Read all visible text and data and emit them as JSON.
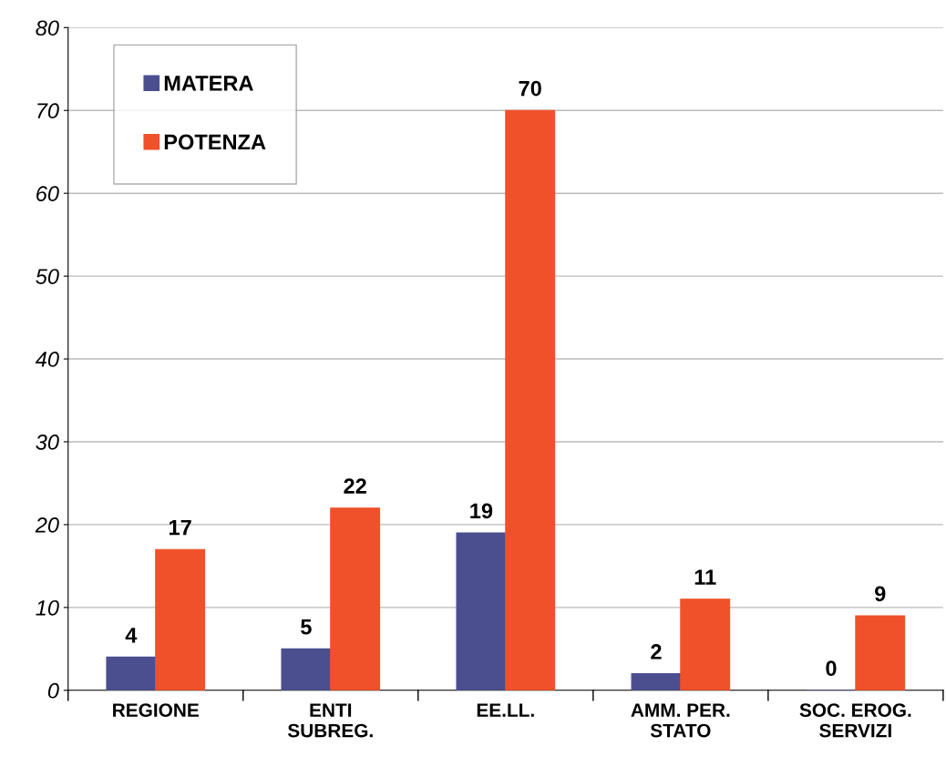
{
  "chart_data": {
    "type": "bar",
    "categories": [
      "REGIONE",
      "ENTI\nSUBREG.",
      "EE.LL.",
      "AMM. PER.\nSTATO",
      "SOC. EROG.\nSERVIZI"
    ],
    "series": [
      {
        "name": "MATERA",
        "color": "#4b4f8f",
        "values": [
          4,
          5,
          19,
          2,
          0
        ]
      },
      {
        "name": "POTENZA",
        "color": "#f0512a",
        "values": [
          17,
          22,
          70,
          11,
          9
        ]
      }
    ],
    "ylim": [
      0,
      80
    ],
    "yticks": [
      0,
      10,
      20,
      30,
      40,
      50,
      60,
      70,
      80
    ],
    "grid": "y",
    "legend": "top left",
    "data_labels": true
  }
}
